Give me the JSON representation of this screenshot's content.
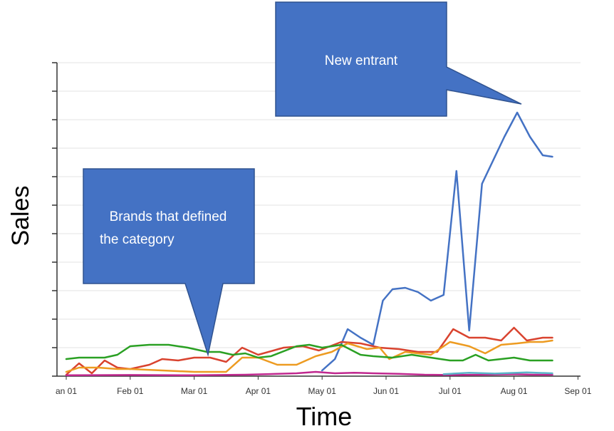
{
  "chart_data": {
    "type": "line",
    "xlabel": "Time",
    "ylabel": "Sales",
    "x_tick_labels": [
      "an 01",
      "Feb 01",
      "Mar 01",
      "Apr 01",
      "May 01",
      "Jun 01",
      "Jul 01",
      "Aug 01",
      "Sep 01"
    ],
    "ylim": [
      0,
      11
    ],
    "grid": true,
    "legend": "none",
    "y_tick_labels_shown": false,
    "series": [
      {
        "color": "#4472C4",
        "points": [
          [
            4.0,
            0.2
          ],
          [
            4.2,
            0.6
          ],
          [
            4.4,
            1.65
          ],
          [
            4.6,
            1.35
          ],
          [
            4.8,
            1.1
          ],
          [
            4.95,
            2.65
          ],
          [
            5.1,
            3.05
          ],
          [
            5.3,
            3.1
          ],
          [
            5.5,
            2.95
          ],
          [
            5.7,
            2.65
          ],
          [
            5.9,
            2.85
          ],
          [
            6.1,
            7.2
          ],
          [
            6.3,
            1.6
          ],
          [
            6.5,
            6.75
          ],
          [
            6.85,
            8.4
          ],
          [
            7.05,
            9.25
          ],
          [
            7.25,
            8.4
          ],
          [
            7.45,
            7.75
          ],
          [
            7.6,
            7.7
          ]
        ]
      },
      {
        "color": "#D9432F",
        "points": [
          [
            0,
            0.05
          ],
          [
            0.2,
            0.45
          ],
          [
            0.4,
            0.1
          ],
          [
            0.6,
            0.55
          ],
          [
            0.8,
            0.3
          ],
          [
            1.0,
            0.25
          ],
          [
            1.3,
            0.4
          ],
          [
            1.5,
            0.6
          ],
          [
            1.75,
            0.55
          ],
          [
            2.0,
            0.65
          ],
          [
            2.25,
            0.65
          ],
          [
            2.5,
            0.5
          ],
          [
            2.75,
            1.0
          ],
          [
            3.0,
            0.75
          ],
          [
            3.4,
            1.0
          ],
          [
            3.7,
            1.05
          ],
          [
            3.95,
            0.9
          ],
          [
            4.3,
            1.2
          ],
          [
            4.6,
            1.15
          ],
          [
            4.9,
            1.0
          ],
          [
            5.2,
            0.95
          ],
          [
            5.5,
            0.85
          ],
          [
            5.8,
            0.85
          ],
          [
            6.05,
            1.65
          ],
          [
            6.3,
            1.35
          ],
          [
            6.55,
            1.35
          ],
          [
            6.8,
            1.25
          ],
          [
            7.0,
            1.7
          ],
          [
            7.2,
            1.25
          ],
          [
            7.45,
            1.35
          ],
          [
            7.6,
            1.35
          ]
        ]
      },
      {
        "color": "#ED9B21",
        "points": [
          [
            0,
            0.15
          ],
          [
            0.2,
            0.3
          ],
          [
            0.5,
            0.3
          ],
          [
            0.8,
            0.25
          ],
          [
            1.0,
            0.25
          ],
          [
            1.5,
            0.2
          ],
          [
            2.0,
            0.15
          ],
          [
            2.5,
            0.15
          ],
          [
            2.75,
            0.65
          ],
          [
            3.0,
            0.65
          ],
          [
            3.3,
            0.4
          ],
          [
            3.6,
            0.4
          ],
          [
            3.9,
            0.7
          ],
          [
            4.15,
            0.85
          ],
          [
            4.4,
            1.15
          ],
          [
            4.7,
            0.95
          ],
          [
            4.9,
            1.0
          ],
          [
            5.05,
            0.6
          ],
          [
            5.3,
            0.85
          ],
          [
            5.7,
            0.75
          ],
          [
            6.0,
            1.2
          ],
          [
            6.3,
            1.05
          ],
          [
            6.55,
            0.8
          ],
          [
            6.8,
            1.1
          ],
          [
            7.05,
            1.15
          ],
          [
            7.25,
            1.2
          ],
          [
            7.45,
            1.2
          ],
          [
            7.6,
            1.25
          ]
        ]
      },
      {
        "color": "#2AA023",
        "points": [
          [
            0,
            0.6
          ],
          [
            0.2,
            0.65
          ],
          [
            0.6,
            0.65
          ],
          [
            0.8,
            0.75
          ],
          [
            1.0,
            1.05
          ],
          [
            1.3,
            1.1
          ],
          [
            1.6,
            1.1
          ],
          [
            1.9,
            1.0
          ],
          [
            2.2,
            0.85
          ],
          [
            2.4,
            0.85
          ],
          [
            2.6,
            0.75
          ],
          [
            2.8,
            0.8
          ],
          [
            3.0,
            0.65
          ],
          [
            3.2,
            0.7
          ],
          [
            3.6,
            1.05
          ],
          [
            3.8,
            1.1
          ],
          [
            4.0,
            1.0
          ],
          [
            4.3,
            1.1
          ],
          [
            4.6,
            0.75
          ],
          [
            4.8,
            0.7
          ],
          [
            5.1,
            0.65
          ],
          [
            5.4,
            0.75
          ],
          [
            5.7,
            0.65
          ],
          [
            6.0,
            0.55
          ],
          [
            6.2,
            0.55
          ],
          [
            6.4,
            0.75
          ],
          [
            6.6,
            0.55
          ],
          [
            6.8,
            0.6
          ],
          [
            7.0,
            0.65
          ],
          [
            7.25,
            0.55
          ],
          [
            7.6,
            0.55
          ]
        ]
      },
      {
        "color": "#C0288F",
        "points": [
          [
            0,
            0.03
          ],
          [
            1.0,
            0.04
          ],
          [
            2.0,
            0.03
          ],
          [
            2.8,
            0.05
          ],
          [
            3.3,
            0.08
          ],
          [
            3.6,
            0.1
          ],
          [
            3.9,
            0.15
          ],
          [
            4.2,
            0.1
          ],
          [
            4.5,
            0.12
          ],
          [
            4.8,
            0.1
          ],
          [
            5.2,
            0.08
          ],
          [
            5.6,
            0.05
          ],
          [
            6.0,
            0.04
          ],
          [
            6.5,
            0.05
          ],
          [
            7.0,
            0.07
          ],
          [
            7.3,
            0.05
          ],
          [
            7.6,
            0.05
          ]
        ]
      },
      {
        "color": "#5AB4C8",
        "points": [
          [
            5.9,
            0.07
          ],
          [
            6.3,
            0.12
          ],
          [
            6.7,
            0.09
          ],
          [
            7.2,
            0.13
          ],
          [
            7.6,
            0.1
          ]
        ]
      }
    ],
    "annotations": [
      {
        "text_lines": [
          "New entrant"
        ],
        "color": "#4472C4"
      },
      {
        "text_lines": [
          "Brands that defined",
          "the category"
        ],
        "color": "#4472C4"
      }
    ]
  }
}
